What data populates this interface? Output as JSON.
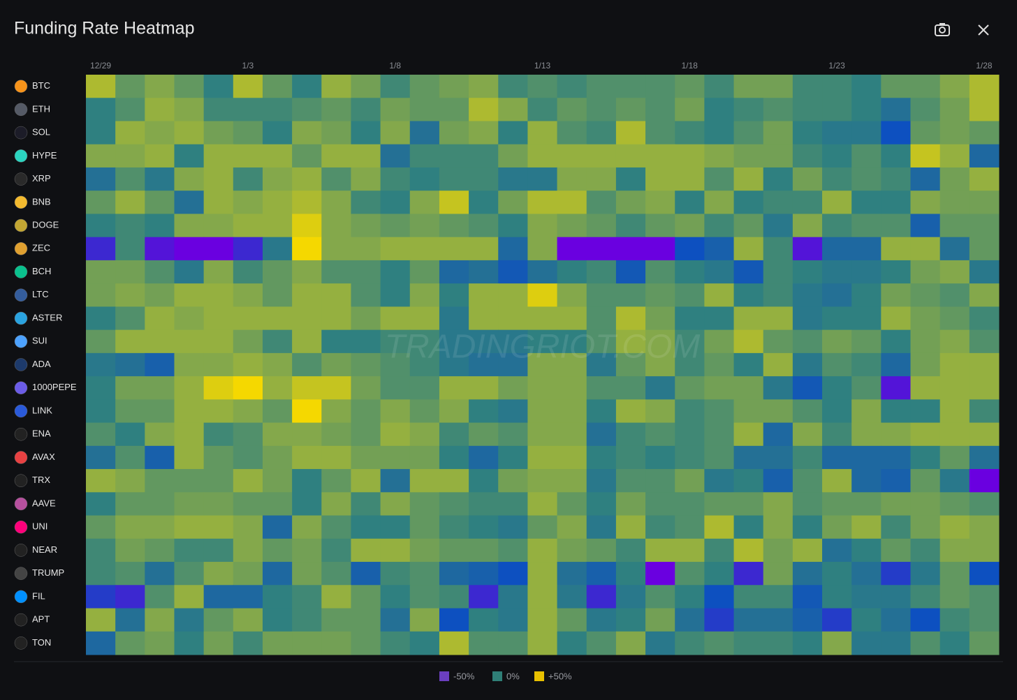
{
  "chart_data": {
    "type": "heatmap",
    "title": "Funding Rate Heatmap",
    "watermark": "TRADINGRIOT.COM",
    "x": [
      "12/29",
      null,
      null,
      null,
      null,
      "1/3",
      null,
      null,
      null,
      null,
      "1/8",
      null,
      null,
      null,
      null,
      "1/13",
      null,
      null,
      null,
      null,
      "1/18",
      null,
      null,
      null,
      null,
      "1/23",
      null,
      null,
      null,
      null,
      "1/28"
    ],
    "y": [
      "BTC",
      "ETH",
      "SOL",
      "HYPE",
      "XRP",
      "BNB",
      "DOGE",
      "ZEC",
      "BCH",
      "LTC",
      "ASTER",
      "SUI",
      "ADA",
      "1000PEPE",
      "LINK",
      "ENA",
      "AVAX",
      "TRX",
      "AAVE",
      "UNI",
      "NEAR",
      "TRUMP",
      "FIL",
      "APT",
      "TON"
    ],
    "values": [
      [
        35,
        15,
        25,
        15,
        0,
        35,
        15,
        0,
        30,
        20,
        5,
        15,
        20,
        25,
        5,
        10,
        5,
        10,
        10,
        10,
        15,
        5,
        20,
        20,
        5,
        5,
        0,
        15,
        15,
        25,
        35
      ],
      [
        0,
        10,
        30,
        25,
        5,
        5,
        5,
        10,
        15,
        5,
        20,
        15,
        15,
        35,
        25,
        5,
        15,
        10,
        15,
        10,
        20,
        0,
        5,
        10,
        5,
        5,
        0,
        -10,
        10,
        20,
        35
      ],
      [
        0,
        30,
        25,
        30,
        20,
        15,
        0,
        25,
        20,
        0,
        25,
        -10,
        20,
        25,
        0,
        30,
        10,
        5,
        35,
        10,
        5,
        0,
        10,
        20,
        0,
        -5,
        -5,
        -30,
        15,
        20,
        15
      ],
      [
        25,
        25,
        30,
        0,
        30,
        30,
        30,
        15,
        30,
        30,
        -10,
        5,
        5,
        5,
        20,
        30,
        30,
        30,
        30,
        30,
        30,
        25,
        20,
        20,
        5,
        0,
        10,
        0,
        40,
        30,
        -15
      ],
      [
        -10,
        10,
        -5,
        25,
        30,
        5,
        25,
        30,
        10,
        25,
        5,
        0,
        5,
        5,
        -5,
        -5,
        25,
        25,
        0,
        30,
        30,
        10,
        30,
        0,
        20,
        5,
        10,
        5,
        -15,
        20,
        30
      ],
      [
        15,
        30,
        15,
        -10,
        30,
        25,
        30,
        35,
        25,
        5,
        0,
        25,
        40,
        0,
        20,
        35,
        35,
        10,
        20,
        25,
        0,
        25,
        0,
        5,
        5,
        30,
        0,
        0,
        25,
        20,
        20
      ],
      [
        0,
        5,
        0,
        25,
        25,
        30,
        30,
        45,
        25,
        20,
        15,
        20,
        15,
        10,
        0,
        25,
        20,
        15,
        5,
        15,
        20,
        5,
        15,
        -5,
        25,
        5,
        10,
        10,
        -20,
        15,
        15
      ],
      [
        -40,
        5,
        -45,
        -50,
        -50,
        -40,
        -5,
        50,
        25,
        25,
        30,
        30,
        30,
        30,
        -15,
        25,
        -50,
        -50,
        -50,
        -50,
        -30,
        -20,
        30,
        5,
        -45,
        -15,
        -15,
        30,
        30,
        -10,
        15
      ],
      [
        20,
        20,
        10,
        -5,
        25,
        5,
        15,
        25,
        10,
        10,
        0,
        15,
        -15,
        -10,
        -25,
        -10,
        0,
        5,
        -25,
        10,
        0,
        -5,
        -25,
        5,
        0,
        -5,
        -5,
        0,
        20,
        25,
        -5
      ],
      [
        20,
        25,
        20,
        30,
        30,
        25,
        15,
        30,
        30,
        10,
        0,
        25,
        0,
        30,
        30,
        45,
        25,
        10,
        10,
        15,
        10,
        30,
        0,
        5,
        -5,
        -10,
        0,
        20,
        15,
        10,
        25
      ],
      [
        0,
        10,
        30,
        25,
        30,
        30,
        30,
        30,
        30,
        20,
        30,
        30,
        -5,
        30,
        30,
        30,
        30,
        10,
        35,
        20,
        0,
        0,
        30,
        30,
        -5,
        0,
        0,
        30,
        20,
        15,
        5
      ],
      [
        15,
        30,
        30,
        30,
        30,
        20,
        5,
        30,
        0,
        0,
        5,
        5,
        -5,
        -5,
        -5,
        0,
        0,
        10,
        30,
        25,
        5,
        20,
        35,
        15,
        10,
        20,
        15,
        0,
        20,
        25,
        10
      ],
      [
        -5,
        -10,
        -20,
        25,
        25,
        30,
        25,
        10,
        20,
        15,
        10,
        5,
        -5,
        -10,
        -10,
        25,
        25,
        -5,
        15,
        25,
        5,
        15,
        0,
        30,
        -5,
        10,
        5,
        -15,
        20,
        30,
        30
      ],
      [
        0,
        20,
        20,
        30,
        45,
        50,
        30,
        40,
        40,
        20,
        10,
        10,
        30,
        30,
        20,
        25,
        25,
        10,
        10,
        -5,
        15,
        20,
        20,
        -5,
        -25,
        0,
        10,
        -45,
        30,
        30,
        30
      ],
      [
        0,
        15,
        15,
        30,
        30,
        25,
        15,
        50,
        25,
        15,
        25,
        15,
        25,
        0,
        -5,
        25,
        25,
        0,
        30,
        25,
        5,
        10,
        20,
        20,
        10,
        0,
        25,
        0,
        0,
        30,
        5
      ],
      [
        10,
        0,
        25,
        30,
        5,
        10,
        25,
        25,
        20,
        15,
        30,
        25,
        5,
        15,
        10,
        25,
        25,
        -10,
        5,
        10,
        5,
        10,
        30,
        -15,
        25,
        5,
        25,
        25,
        30,
        30,
        30
      ],
      [
        -10,
        10,
        -20,
        30,
        15,
        10,
        20,
        30,
        30,
        20,
        20,
        20,
        0,
        -15,
        0,
        30,
        30,
        0,
        5,
        0,
        5,
        10,
        -10,
        -10,
        5,
        -15,
        -15,
        -15,
        0,
        15,
        -10
      ],
      [
        30,
        25,
        15,
        15,
        15,
        30,
        20,
        0,
        15,
        30,
        -10,
        30,
        30,
        0,
        20,
        25,
        25,
        -5,
        10,
        10,
        20,
        -5,
        0,
        -20,
        10,
        30,
        -15,
        -20,
        15,
        -5,
        -50
      ],
      [
        0,
        15,
        15,
        20,
        20,
        15,
        15,
        0,
        25,
        5,
        25,
        15,
        10,
        5,
        5,
        30,
        15,
        0,
        20,
        10,
        10,
        15,
        15,
        25,
        10,
        15,
        15,
        20,
        20,
        15,
        10
      ],
      [
        15,
        25,
        25,
        30,
        30,
        25,
        -15,
        25,
        10,
        0,
        0,
        15,
        5,
        0,
        -5,
        15,
        25,
        -5,
        30,
        5,
        10,
        35,
        0,
        25,
        0,
        20,
        30,
        5,
        20,
        30,
        25
      ],
      [
        5,
        20,
        15,
        5,
        5,
        25,
        15,
        20,
        5,
        30,
        30,
        20,
        15,
        15,
        10,
        30,
        20,
        15,
        5,
        30,
        30,
        5,
        35,
        20,
        30,
        -10,
        0,
        15,
        5,
        25,
        25
      ],
      [
        5,
        10,
        -10,
        10,
        25,
        20,
        -15,
        20,
        10,
        -20,
        5,
        10,
        -15,
        -20,
        -30,
        30,
        -10,
        -20,
        0,
        -50,
        10,
        0,
        -40,
        20,
        -10,
        0,
        -10,
        -35,
        -5,
        15,
        -30
      ],
      [
        -35,
        -40,
        10,
        30,
        -15,
        -15,
        0,
        5,
        30,
        15,
        0,
        10,
        5,
        -40,
        -5,
        30,
        -5,
        -40,
        -5,
        10,
        0,
        -30,
        5,
        5,
        -25,
        0,
        -5,
        -5,
        5,
        15,
        10
      ],
      [
        30,
        -10,
        25,
        -5,
        15,
        25,
        0,
        5,
        15,
        15,
        -10,
        25,
        -30,
        0,
        -5,
        30,
        15,
        -5,
        0,
        20,
        -10,
        -35,
        -10,
        -10,
        -20,
        -35,
        0,
        -10,
        -30,
        5,
        10
      ],
      [
        -15,
        15,
        20,
        0,
        20,
        5,
        20,
        20,
        20,
        15,
        5,
        0,
        35,
        10,
        10,
        30,
        0,
        10,
        25,
        -5,
        5,
        10,
        5,
        5,
        0,
        25,
        -5,
        -5,
        10,
        0,
        15
      ]
    ],
    "colorscale": [
      [
        -50,
        "#6a00e0"
      ],
      [
        -30,
        "#0d50c0"
      ],
      [
        0,
        "#2f8080"
      ],
      [
        30,
        "#95b040"
      ],
      [
        50,
        "#f5d800"
      ]
    ],
    "legend": [
      {
        "value": -50,
        "label": "-50%",
        "color": "#6b3fbf"
      },
      {
        "value": 0,
        "label": "0%",
        "color": "#2f7f77"
      },
      {
        "value": 50,
        "label": "+50%",
        "color": "#e8c000"
      }
    ]
  }
}
